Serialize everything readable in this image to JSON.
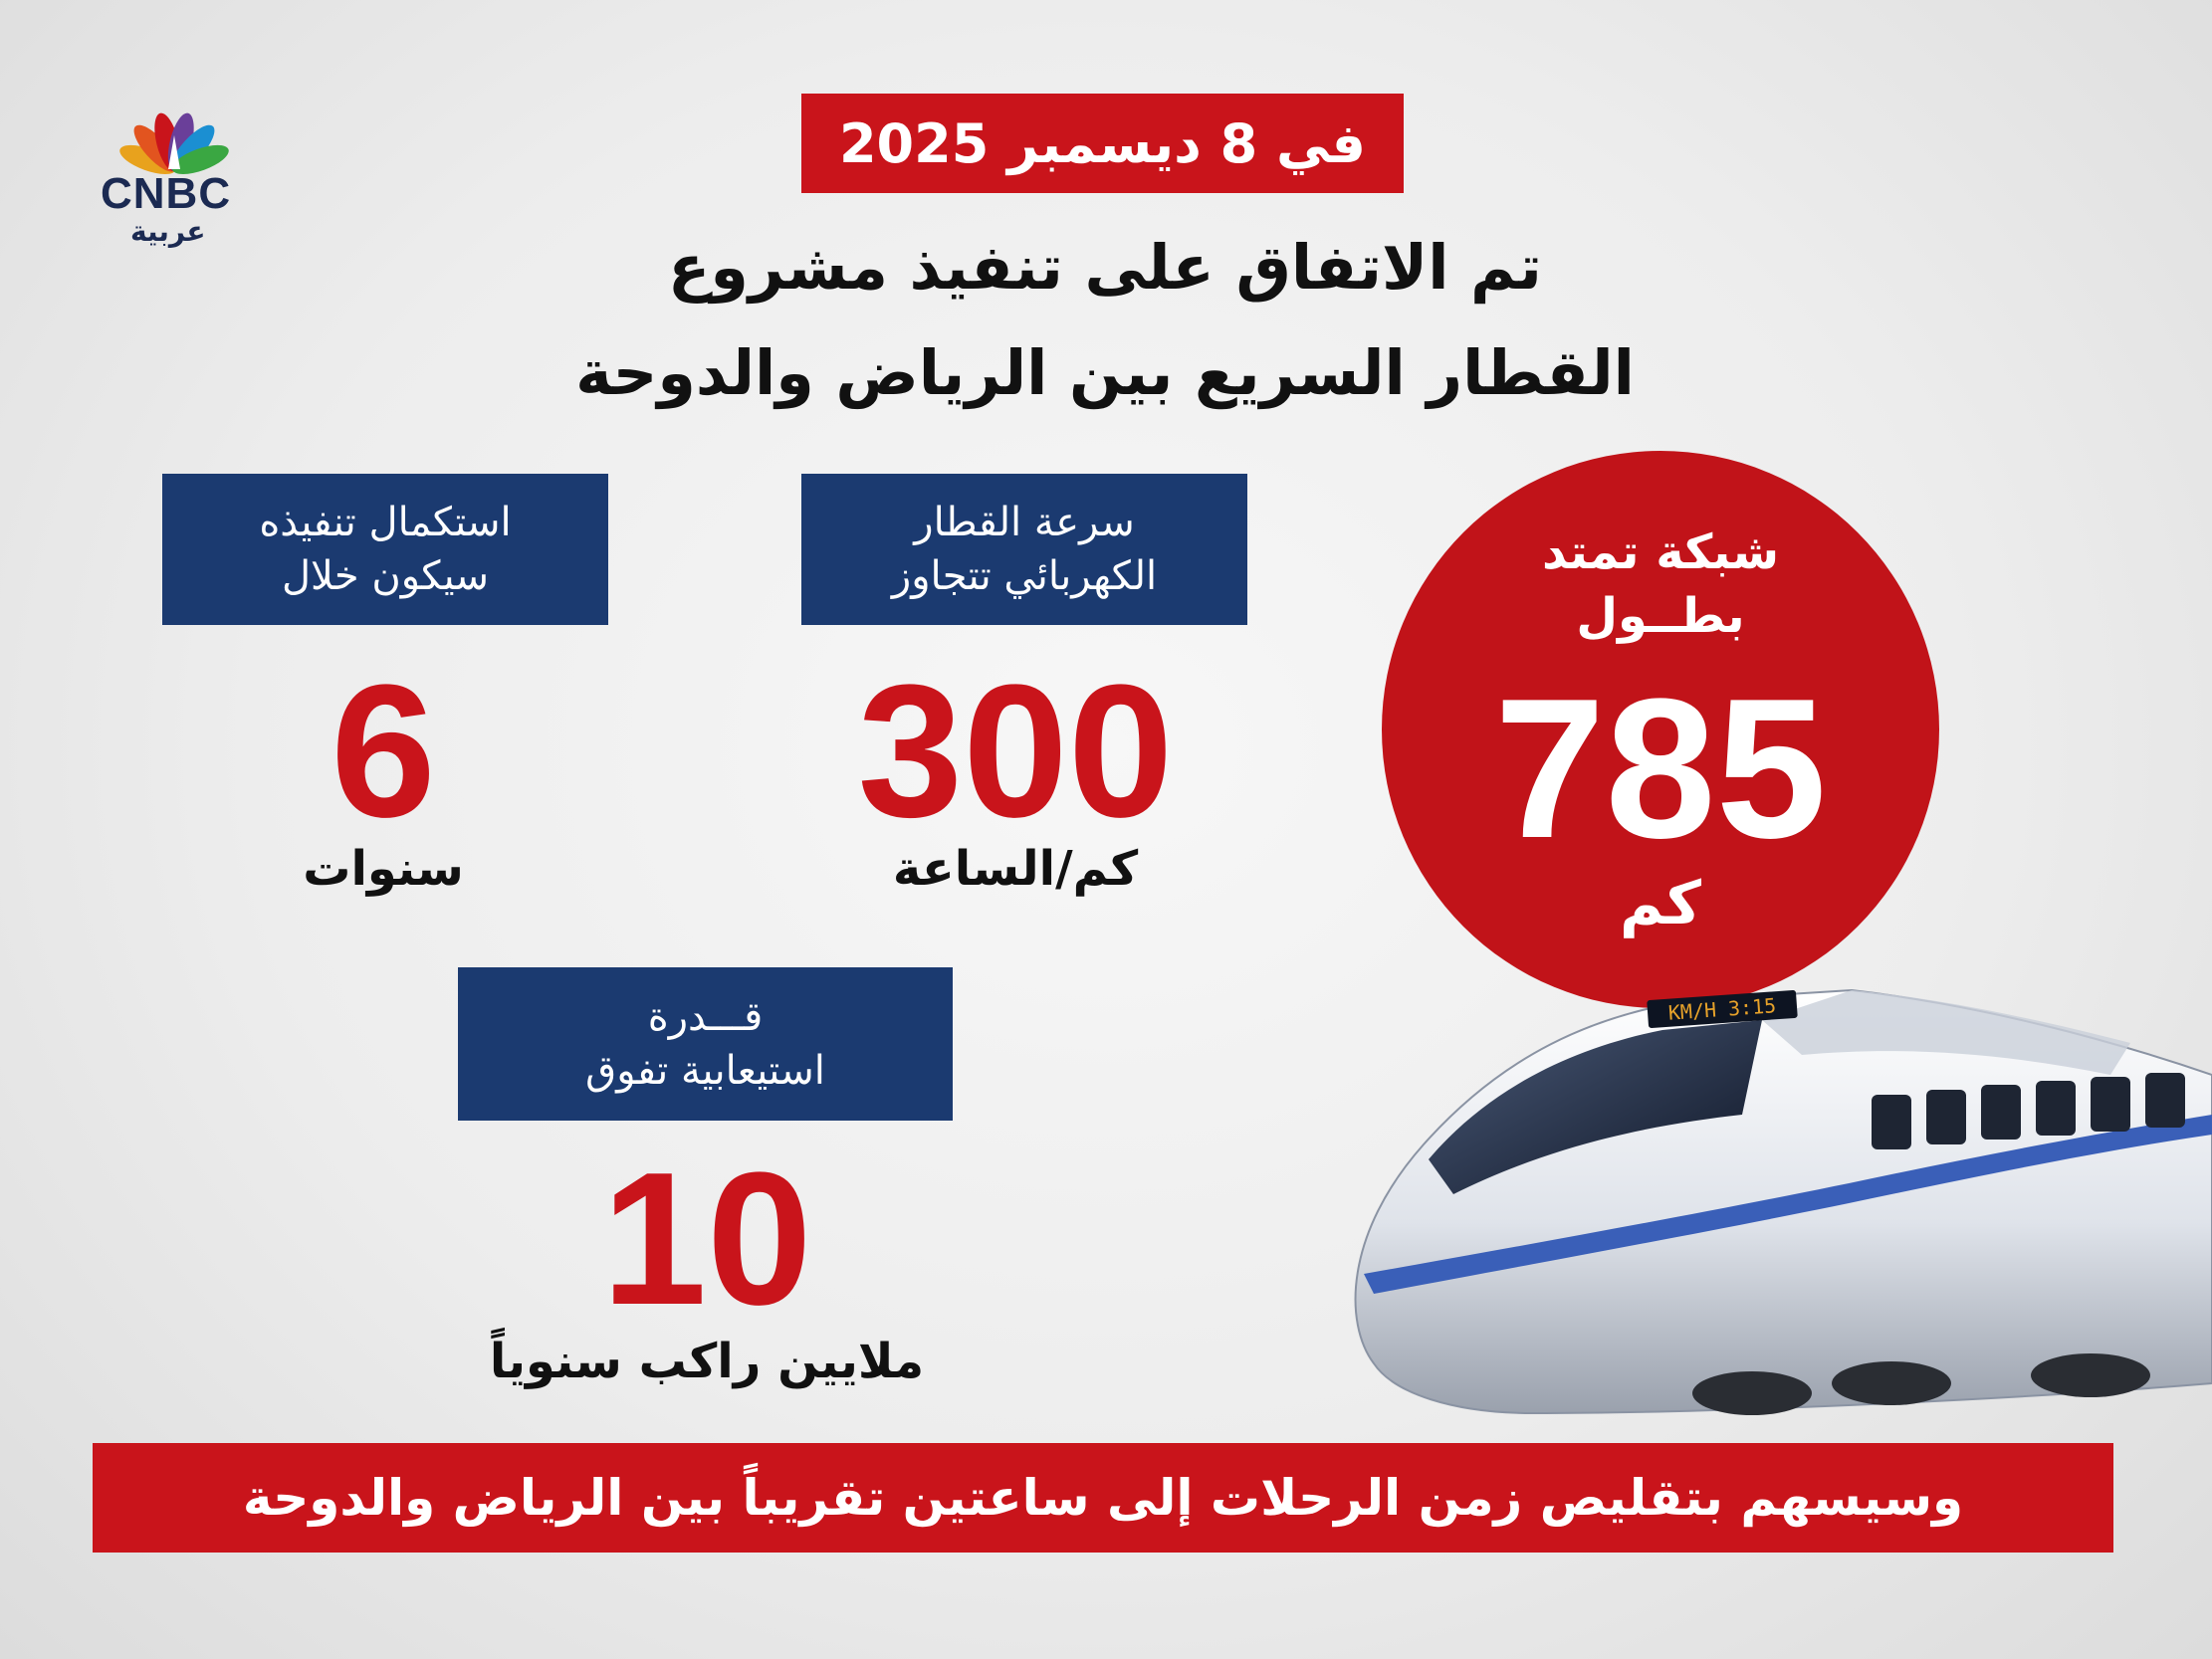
{
  "brand": {
    "wordmark": "CNBC",
    "arabic": "عربية"
  },
  "date_label": "في 8 ديسمبر 2025",
  "headline": {
    "line1": "تم الاتفاق على تنفيذ مشروع",
    "line2": "القطار السريع بين الرياض والدوحة"
  },
  "network": {
    "label_line1": "شبكة تمتد",
    "label_line2": "بطــول",
    "value": "785",
    "unit": "كم"
  },
  "speed": {
    "label_line1": "سرعة القطار",
    "label_line2": "الكهربائي تتجاوز",
    "value": "300",
    "unit": "كم/الساعة"
  },
  "duration": {
    "label_line1": "استكمال تنفيذه",
    "label_line2": "سيكون خلال",
    "value": "6",
    "unit": "سنوات"
  },
  "capacity": {
    "label_line1": "قـــدرة",
    "label_line2": "استيعابية تفوق",
    "value": "10",
    "unit": "ملايين راكب سنوياً"
  },
  "train_display": "3:15 KM/H",
  "footer": "وسيسهم بتقليص زمن الرحلات إلى ساعتين تقريباً بين الرياض والدوحة",
  "colors": {
    "red": "#c9141b",
    "navy": "#1b3a70",
    "train_stripe": "#3a5fb8"
  }
}
